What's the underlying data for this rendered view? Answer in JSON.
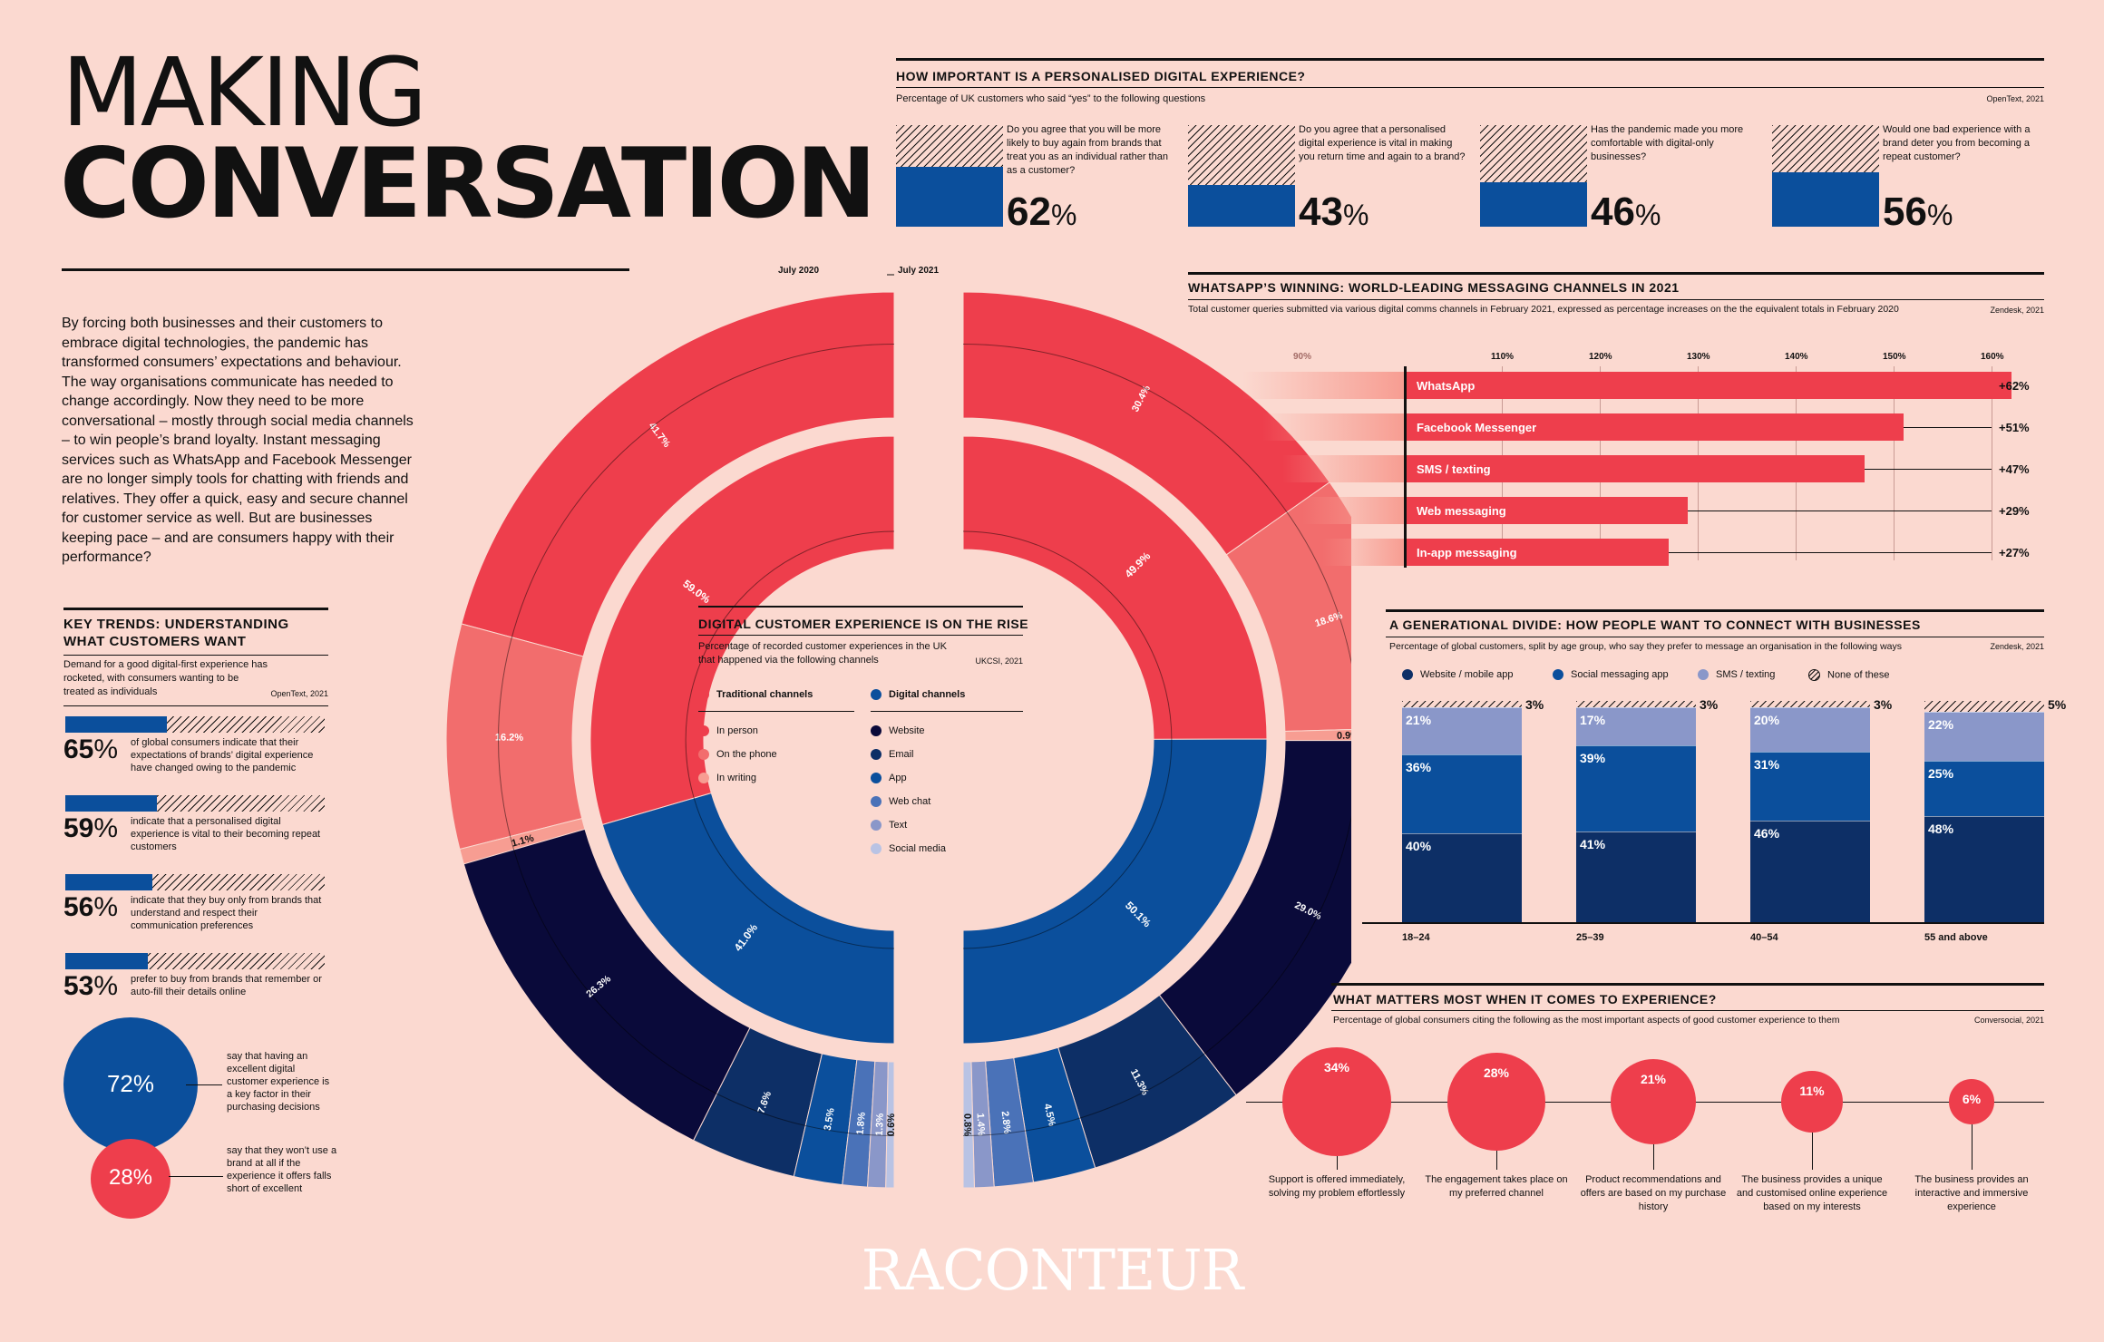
{
  "title": {
    "line1": "MAKING",
    "line2": "CONVERSATION"
  },
  "intro": "By forcing both businesses and their customers to embrace digital technologies, the pandemic has transformed consumers’ expectations and behaviour. The way organisations communicate has needed to change accordingly. Now they need to be more conversational – mostly through social media channels – to win people’s brand loyalty. Instant messaging services such as WhatsApp and Facebook Messenger are no longer simply tools for chatting with friends and relatives. They offer a quick, easy and secure channel for customer service as well. But are businesses keeping pace – and are consumers happy with their performance?",
  "key_trends": {
    "title1": "KEY TRENDS: UNDERSTANDING",
    "title2": "WHAT CUSTOMERS WANT",
    "subtitle": "Demand for a good digital-first experience has rocketed, with consumers wanting to be treated as individuals",
    "source": "OpenText, 2021",
    "items": [
      {
        "value": 65,
        "text": "of global consumers indicate that their expectations of brands’ digital experience have changed owing to the pandemic"
      },
      {
        "value": 59,
        "text": "indicate that a personalised digital experience is vital to their becoming repeat customers"
      },
      {
        "value": 56,
        "text": "indicate that they buy only from brands that understand and respect their communication preferences"
      },
      {
        "value": 53,
        "text": "prefer to buy from brands that remember or auto-fill their details online"
      }
    ],
    "circles": [
      {
        "label": "72%",
        "value": 72,
        "text": "say that having an excellent digital customer experience is a key factor in their purchasing decisions",
        "color": "#0b4f9c"
      },
      {
        "label": "28%",
        "value": 28,
        "text": "say that they won’t use a brand at all if the experience it offers falls short of excellent",
        "color": "#ee3e4c"
      }
    ]
  },
  "personalised": {
    "title": "HOW IMPORTANT IS A PERSONALISED DIGITAL EXPERIENCE?",
    "subtitle": "Percentage of UK customers who said “yes” to the following questions",
    "source": "OpenText, 2021",
    "items": [
      {
        "value": 62,
        "num": "62",
        "question": "Do you agree that you will be more likely to buy again from brands that treat you as an individual rather than as a customer?"
      },
      {
        "value": 43,
        "num": "43",
        "question": "Do you agree that a personalised digital experience is vital in making you return time and again to a brand?"
      },
      {
        "value": 46,
        "num": "46",
        "question": "Has the pandemic made you more comfortable with digital-only businesses?"
      },
      {
        "value": 56,
        "num": "56",
        "question": "Would one bad experience with a brand deter you from becoming a repeat customer?"
      }
    ],
    "pct": "%"
  },
  "whatsapp": {
    "title": "WHATSAPP’S WINNING: WORLD-LEADING MESSAGING CHANNELS IN 2021",
    "subtitle": "Total customer queries submitted via various digital comms channels in February 2021, expressed as percentage increases on the the equivalent totals in February 2020",
    "source": "Zendesk, 2021",
    "ticks": [
      "90%",
      "110%",
      "120%",
      "130%",
      "140%",
      "150%",
      "160%"
    ]
  },
  "generational": {
    "title": "A GENERATIONAL DIVIDE: HOW PEOPLE WANT TO CONNECT WITH BUSINESSES",
    "subtitle": "Percentage of global customers, split by age group, who say they prefer to message an organisation in the following ways",
    "source": "Zendesk, 2021",
    "legend": [
      "Website / mobile app",
      "Social messaging app",
      "SMS / texting",
      "None of these"
    ]
  },
  "matters": {
    "title": "WHAT MATTERS MOST WHEN IT COMES TO EXPERIENCE?",
    "subtitle": "Percentage of global consumers citing the following as the most important aspects of good customer experience to them",
    "source": "Conversocial, 2021"
  },
  "donut": {
    "left_label": "July 2020",
    "right_label": "July 2021",
    "center": {
      "title": "DIGITAL CUSTOMER EXPERIENCE IS ON THE RISE",
      "subtitle": "Percentage of recorded customer experiences in the UK that happened via the following channels",
      "source": "UKCSI, 2021",
      "trad_header": "Traditional channels",
      "dig_header": "Digital channels",
      "trad": [
        "In person",
        "On the phone",
        "In writing"
      ],
      "dig": [
        "Website",
        "Email",
        "App",
        "Web chat",
        "Text",
        "Social media"
      ]
    }
  },
  "colors": {
    "red": "#ee3e4c",
    "red2": "#f26d6d",
    "red3": "#f79d92",
    "blue": "#0b4f9c",
    "navy": "#0a0a3a",
    "navy2": "#0d2f66",
    "blue2": "#1d5fb0",
    "blue3": "#4a72b8",
    "blue4": "#8c9ed0",
    "blue5": "#b9c3e4",
    "blue6": "#0b4f9c",
    "lav": "#8a97c9"
  },
  "chart_data": [
    {
      "type": "donut",
      "title": "DIGITAL CUSTOMER EXPERIENCE IS ON THE RISE",
      "subtitle": "Percentage of recorded customer experiences in the UK that happened via the following channels",
      "inner_ring": {
        "July 2020": {
          "Traditional channels": 59.0,
          "Digital channels": 41.0
        },
        "July 2021": {
          "Traditional channels": 49.9,
          "Digital channels": 50.1
        }
      },
      "outer_ring": {
        "July 2020": {
          "In person": 41.7,
          "On the phone": 16.2,
          "In writing": 1.1,
          "Website": 26.3,
          "Email": 7.6,
          "App": 3.5,
          "Web chat": 1.8,
          "Text": 1.3,
          "Social media": 0.6
        },
        "July 2021": {
          "In person": 30.4,
          "On the phone": 18.6,
          "In writing": 0.9,
          "Website": 29.0,
          "Email": 11.3,
          "App": 4.5,
          "Web chat": 2.8,
          "Text": 1.4,
          "Social media": 0.8
        }
      }
    },
    {
      "type": "bar",
      "title": "HOW IMPORTANT IS A PERSONALISED DIGITAL EXPERIENCE?",
      "categories": [
        "Buy again if treated as individual",
        "Vital to return to a brand",
        "More comfortable with digital-only",
        "One bad experience deters"
      ],
      "values": [
        62,
        43,
        46,
        56
      ]
    },
    {
      "type": "bar",
      "title": "WHATSAPP’S WINNING: WORLD-LEADING MESSAGING CHANNELS IN 2021",
      "categories": [
        "WhatsApp",
        "Facebook Messenger",
        "SMS / texting",
        "Web messaging",
        "In-app messaging"
      ],
      "values": [
        162,
        151,
        147,
        129,
        127
      ],
      "value_labels": [
        "+62%",
        "+51%",
        "+47%",
        "+29%",
        "+27%"
      ],
      "xlim": [
        90,
        160
      ]
    },
    {
      "type": "bar",
      "title": "A GENERATIONAL DIVIDE: HOW PEOPLE WANT TO CONNECT WITH BUSINESSES",
      "categories": [
        "18–24",
        "25–39",
        "40–54",
        "55 and above"
      ],
      "series": [
        {
          "name": "Website / mobile app",
          "values": [
            40,
            41,
            46,
            48
          ]
        },
        {
          "name": "Social messaging app",
          "values": [
            36,
            39,
            31,
            25
          ]
        },
        {
          "name": "SMS / texting",
          "values": [
            21,
            17,
            20,
            22
          ]
        },
        {
          "name": "None of these",
          "values": [
            3,
            3,
            3,
            5
          ]
        }
      ]
    },
    {
      "type": "bubble",
      "title": "WHAT MATTERS MOST WHEN IT COMES TO EXPERIENCE?",
      "categories": [
        "Support is offered immediately, solving my problem effortlessly",
        "The engagement takes place on my preferred channel",
        "Product recommendations and offers are based on my purchase history",
        "The business provides a unique and customised online experience based on my interests",
        "The business provides an interactive and immersive experience"
      ],
      "values": [
        34,
        28,
        21,
        11,
        6
      ]
    }
  ],
  "footer": {
    "brand": "RACONTEUR"
  }
}
